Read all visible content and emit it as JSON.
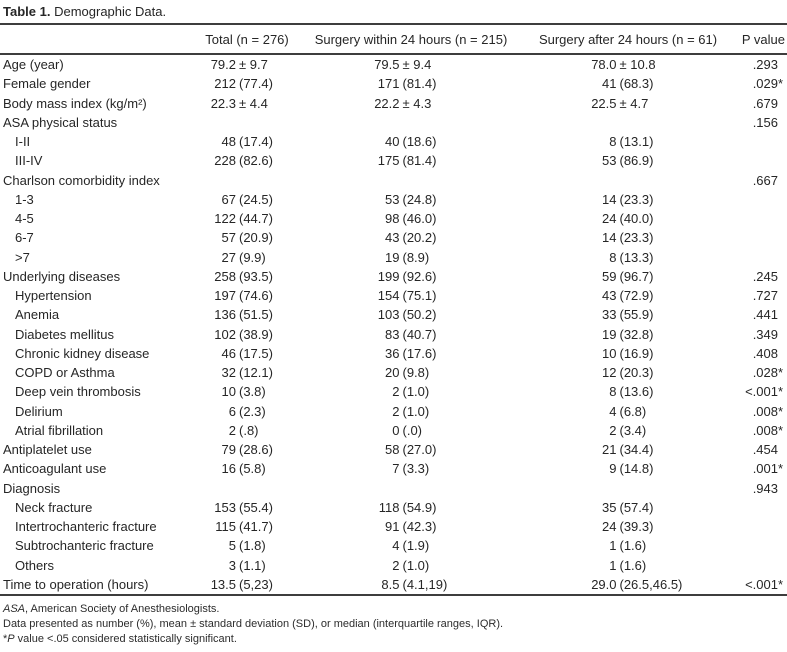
{
  "title": {
    "label": "Table 1.",
    "text": "Demographic Data."
  },
  "table": {
    "columns": [
      {
        "key": "label",
        "label": ""
      },
      {
        "key": "total",
        "label": "Total (n = 276)"
      },
      {
        "key": "within",
        "label": "Surgery within 24 hours (n = 215)"
      },
      {
        "key": "after",
        "label": "Surgery after 24 hours (n = 61)"
      },
      {
        "key": "p",
        "label": "P value"
      }
    ],
    "rows": [
      {
        "label": "Age (year)",
        "indent": false,
        "total": "79.2 ± 9.7",
        "within": "79.5 ± 9.4",
        "after": "78.0 ± 10.8",
        "p": ".293"
      },
      {
        "label": "Female gender",
        "indent": false,
        "total": "212 (77.4)",
        "within": "171 (81.4)",
        "after": "41 (68.3)",
        "p": ".029*"
      },
      {
        "label": "Body mass index (kg/m²)",
        "indent": false,
        "total": "22.3 ± 4.4",
        "within": "22.2 ± 4.3",
        "after": "22.5 ± 4.7",
        "p": ".679"
      },
      {
        "label": "ASA physical status",
        "indent": false,
        "total": "",
        "within": "",
        "after": "",
        "p": ".156"
      },
      {
        "label": "I-II",
        "indent": true,
        "total": "48 (17.4)",
        "within": "40 (18.6)",
        "after": "8 (13.1)",
        "p": ""
      },
      {
        "label": "III-IV",
        "indent": true,
        "total": "228 (82.6)",
        "within": "175 (81.4)",
        "after": "53 (86.9)",
        "p": ""
      },
      {
        "label": "Charlson comorbidity index",
        "indent": false,
        "total": "",
        "within": "",
        "after": "",
        "p": ".667"
      },
      {
        "label": "1-3",
        "indent": true,
        "total": "67 (24.5)",
        "within": "53 (24.8)",
        "after": "14 (23.3)",
        "p": ""
      },
      {
        "label": "4-5",
        "indent": true,
        "total": "122 (44.7)",
        "within": "98 (46.0)",
        "after": "24 (40.0)",
        "p": ""
      },
      {
        "label": "6-7",
        "indent": true,
        "total": "57 (20.9)",
        "within": "43 (20.2)",
        "after": "14 (23.3)",
        "p": ""
      },
      {
        "label": ">7",
        "indent": true,
        "total": "27 (9.9)",
        "within": "19 (8.9)",
        "after": "8 (13.3)",
        "p": ""
      },
      {
        "label": "Underlying diseases",
        "indent": false,
        "total": "258 (93.5)",
        "within": "199 (92.6)",
        "after": "59 (96.7)",
        "p": ".245"
      },
      {
        "label": "Hypertension",
        "indent": true,
        "total": "197 (74.6)",
        "within": "154 (75.1)",
        "after": "43 (72.9)",
        "p": ".727"
      },
      {
        "label": "Anemia",
        "indent": true,
        "total": "136 (51.5)",
        "within": "103 (50.2)",
        "after": "33 (55.9)",
        "p": ".441"
      },
      {
        "label": "Diabetes mellitus",
        "indent": true,
        "total": "102 (38.9)",
        "within": "83 (40.7)",
        "after": "19 (32.8)",
        "p": ".349"
      },
      {
        "label": "Chronic kidney disease",
        "indent": true,
        "total": "46 (17.5)",
        "within": "36 (17.6)",
        "after": "10 (16.9)",
        "p": ".408"
      },
      {
        "label": "COPD or Asthma",
        "indent": true,
        "total": "32 (12.1)",
        "within": "20 (9.8)",
        "after": "12 (20.3)",
        "p": ".028*"
      },
      {
        "label": "Deep vein thrombosis",
        "indent": true,
        "total": "10 (3.8)",
        "within": "2 (1.0)",
        "after": "8 (13.6)",
        "p": "<.001*"
      },
      {
        "label": "Delirium",
        "indent": true,
        "total": "6 (2.3)",
        "within": "2 (1.0)",
        "after": "4 (6.8)",
        "p": ".008*"
      },
      {
        "label": "Atrial fibrillation",
        "indent": true,
        "total": "2 (.8)",
        "within": "0 (.0)",
        "after": "2 (3.4)",
        "p": ".008*"
      },
      {
        "label": "Antiplatelet use",
        "indent": false,
        "total": "79 (28.6)",
        "within": "58 (27.0)",
        "after": "21 (34.4)",
        "p": ".454"
      },
      {
        "label": "Anticoagulant use",
        "indent": false,
        "total": "16 (5.8)",
        "within": "7 (3.3)",
        "after": "9 (14.8)",
        "p": ".001*"
      },
      {
        "label": "Diagnosis",
        "indent": false,
        "total": "",
        "within": "",
        "after": "",
        "p": ".943"
      },
      {
        "label": "Neck fracture",
        "indent": true,
        "total": "153 (55.4)",
        "within": "118 (54.9)",
        "after": "35 (57.4)",
        "p": ""
      },
      {
        "label": "Intertrochanteric fracture",
        "indent": true,
        "total": "115 (41.7)",
        "within": "91 (42.3)",
        "after": "24 (39.3)",
        "p": ""
      },
      {
        "label": "Subtrochanteric fracture",
        "indent": true,
        "total": "5 (1.8)",
        "within": "4 (1.9)",
        "after": "1 (1.6)",
        "p": ""
      },
      {
        "label": "Others",
        "indent": true,
        "total": "3 (1.1)",
        "within": "2 (1.0)",
        "after": "1 (1.6)",
        "p": ""
      },
      {
        "label": "Time to operation (hours)",
        "indent": false,
        "total": "13.5 (5,23)",
        "within": "8.5 (4.1,19)",
        "after": "29.0 (26.5,46.5)",
        "p": "<.001*"
      }
    ]
  },
  "footnotes": [
    {
      "parts": [
        {
          "t": "ASA",
          "i": true
        },
        {
          "t": ", American Society of Anesthesiologists.",
          "i": false
        }
      ]
    },
    {
      "parts": [
        {
          "t": "Data presented as number (%), mean ± standard deviation (SD), or median (interquartile ranges, IQR).",
          "i": false
        }
      ]
    },
    {
      "parts": [
        {
          "t": "*",
          "i": false
        },
        {
          "t": "P",
          "i": true
        },
        {
          "t": " value <.05 considered statistically significant.",
          "i": false
        }
      ]
    }
  ]
}
